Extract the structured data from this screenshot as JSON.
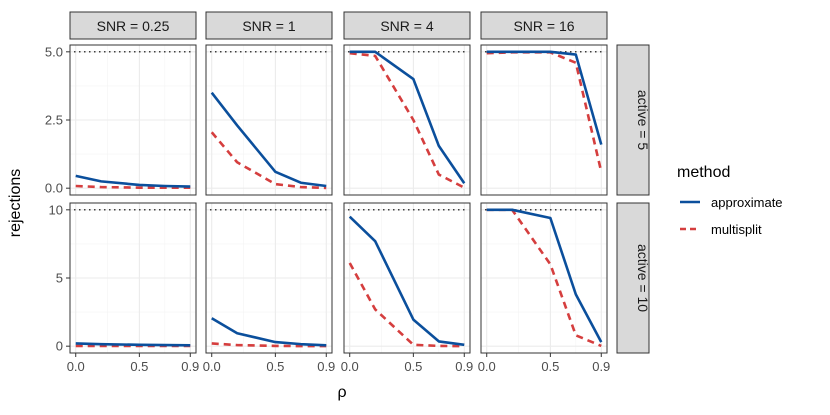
{
  "chart_data": {
    "type": "line",
    "facet_columns": [
      "SNR = 0.25",
      "SNR = 1",
      "SNR = 4",
      "SNR = 16"
    ],
    "facet_rows": [
      "active = 5",
      "active = 10"
    ],
    "xlabel": "ρ",
    "ylabel": "rejections",
    "x": [
      0.0,
      0.2,
      0.5,
      0.7,
      0.9
    ],
    "x_ticks": [
      "0.0",
      "0.5",
      "0.9"
    ],
    "x_tick_values": [
      0.0,
      0.5,
      0.9
    ],
    "xlim": [
      0.0,
      0.9
    ],
    "rows": [
      {
        "ylim": [
          0,
          5
        ],
        "y_ticks": [
          "0.0",
          "2.5",
          "5.0"
        ],
        "y_tick_values": [
          0,
          2.5,
          5
        ],
        "reference": 5
      },
      {
        "ylim": [
          0,
          10
        ],
        "y_ticks": [
          "0",
          "5",
          "10"
        ],
        "y_tick_values": [
          0,
          5,
          10
        ],
        "reference": 10
      }
    ],
    "legend": {
      "title": "method",
      "entries": [
        "approximate",
        "multisplit"
      ]
    },
    "colors": {
      "approximate": "#0b4f9c",
      "multisplit": "#d53e3e"
    },
    "panels": [
      {
        "row": 0,
        "col": 0,
        "approximate": [
          0.45,
          0.25,
          0.12,
          0.08,
          0.06
        ],
        "multisplit": [
          0.08,
          0.04,
          0.02,
          0.02,
          0.02
        ]
      },
      {
        "row": 0,
        "col": 1,
        "approximate": [
          3.5,
          2.3,
          0.6,
          0.2,
          0.08
        ],
        "multisplit": [
          2.05,
          0.95,
          0.15,
          0.04,
          0.01
        ]
      },
      {
        "row": 0,
        "col": 2,
        "approximate": [
          5.0,
          5.0,
          4.0,
          1.55,
          0.18
        ],
        "multisplit": [
          4.95,
          4.85,
          2.5,
          0.5,
          0.02
        ]
      },
      {
        "row": 0,
        "col": 3,
        "approximate": [
          5.0,
          5.0,
          5.0,
          4.9,
          1.6
        ],
        "multisplit": [
          4.95,
          4.98,
          4.98,
          4.6,
          0.6
        ]
      },
      {
        "row": 1,
        "col": 0,
        "approximate": [
          0.2,
          0.15,
          0.1,
          0.08,
          0.06
        ],
        "multisplit": [
          0.02,
          0.02,
          0.02,
          0.02,
          0.02
        ]
      },
      {
        "row": 1,
        "col": 1,
        "approximate": [
          2.05,
          0.95,
          0.3,
          0.15,
          0.06
        ],
        "multisplit": [
          0.2,
          0.08,
          0.02,
          0.01,
          0.01
        ]
      },
      {
        "row": 1,
        "col": 2,
        "approximate": [
          9.5,
          7.7,
          1.95,
          0.35,
          0.1
        ],
        "multisplit": [
          6.1,
          2.7,
          0.1,
          0.02,
          0.0
        ]
      },
      {
        "row": 1,
        "col": 3,
        "approximate": [
          10.0,
          10.0,
          9.4,
          3.8,
          0.3
        ],
        "multisplit": [
          10.0,
          10.0,
          6.0,
          0.8,
          0.02
        ]
      }
    ]
  }
}
